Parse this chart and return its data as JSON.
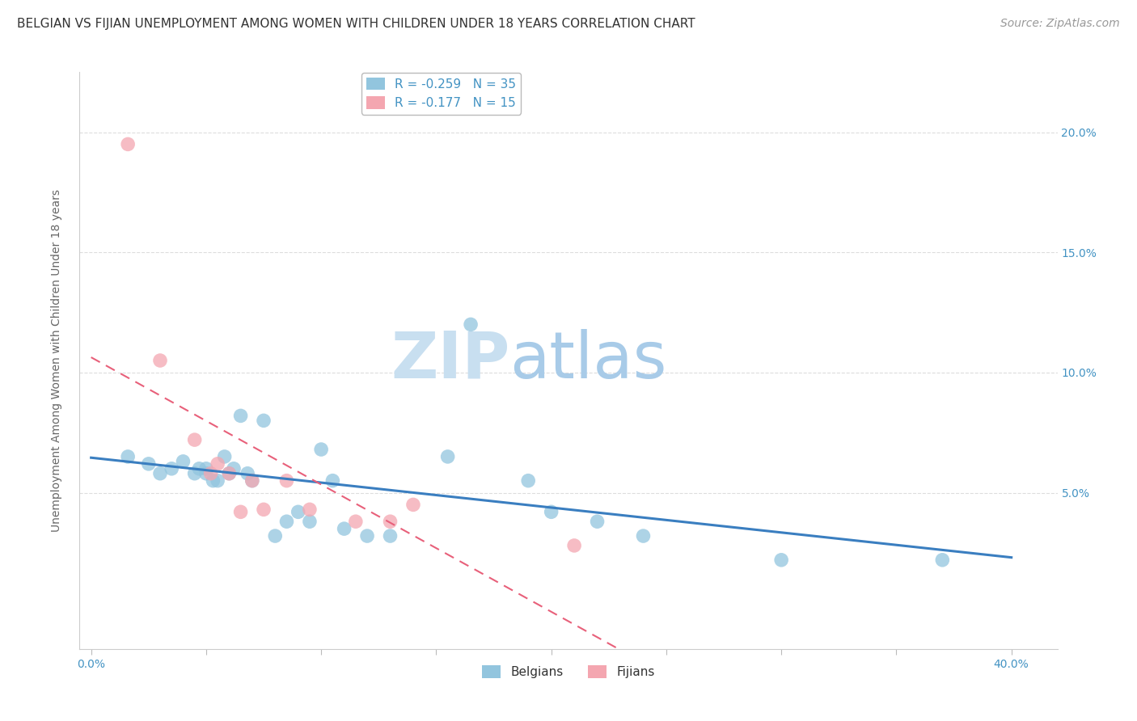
{
  "title": "BELGIAN VS FIJIAN UNEMPLOYMENT AMONG WOMEN WITH CHILDREN UNDER 18 YEARS CORRELATION CHART",
  "source": "Source: ZipAtlas.com",
  "ylabel": "Unemployment Among Women with Children Under 18 years",
  "xlim": [
    -0.005,
    0.42
  ],
  "ylim": [
    -0.015,
    0.225
  ],
  "xticks": [
    0.0,
    0.05,
    0.1,
    0.15,
    0.2,
    0.25,
    0.3,
    0.35,
    0.4
  ],
  "yticks": [
    0.0,
    0.05,
    0.1,
    0.15,
    0.2
  ],
  "watermark_zip": "ZIP",
  "watermark_atlas": "atlas",
  "belgian_color": "#92C5DE",
  "fijian_color": "#F4A6B0",
  "belgian_line_color": "#3A7EC0",
  "fijian_line_color": "#E8607A",
  "legend_r_belgian": "R = -0.259",
  "legend_n_belgian": "N = 35",
  "legend_r_fijian": "R = -0.177",
  "legend_n_fijian": "N = 15",
  "legend_label_belgian": "Belgians",
  "legend_label_fijian": "Fijians",
  "belgian_x": [
    0.016,
    0.025,
    0.03,
    0.035,
    0.04,
    0.045,
    0.047,
    0.05,
    0.05,
    0.053,
    0.055,
    0.058,
    0.06,
    0.062,
    0.065,
    0.068,
    0.07,
    0.075,
    0.08,
    0.085,
    0.09,
    0.095,
    0.1,
    0.105,
    0.11,
    0.12,
    0.13,
    0.155,
    0.165,
    0.19,
    0.2,
    0.22,
    0.24,
    0.3,
    0.37
  ],
  "belgian_y": [
    0.065,
    0.062,
    0.058,
    0.06,
    0.063,
    0.058,
    0.06,
    0.06,
    0.058,
    0.055,
    0.055,
    0.065,
    0.058,
    0.06,
    0.082,
    0.058,
    0.055,
    0.08,
    0.032,
    0.038,
    0.042,
    0.038,
    0.068,
    0.055,
    0.035,
    0.032,
    0.032,
    0.065,
    0.12,
    0.055,
    0.042,
    0.038,
    0.032,
    0.022,
    0.022
  ],
  "fijian_x": [
    0.016,
    0.03,
    0.045,
    0.052,
    0.055,
    0.06,
    0.065,
    0.07,
    0.075,
    0.085,
    0.095,
    0.115,
    0.13,
    0.14,
    0.21
  ],
  "fijian_y": [
    0.195,
    0.105,
    0.072,
    0.058,
    0.062,
    0.058,
    0.042,
    0.055,
    0.043,
    0.055,
    0.043,
    0.038,
    0.038,
    0.045,
    0.028
  ],
  "title_fontsize": 11,
  "source_fontsize": 10,
  "axis_label_fontsize": 10,
  "tick_fontsize": 10,
  "legend_fontsize": 11,
  "watermark_fontsize_zip": 58,
  "watermark_fontsize_atlas": 58,
  "watermark_color_zip": "#C8DFF0",
  "watermark_color_atlas": "#A8CBE8",
  "background_color": "#FFFFFF",
  "grid_color": "#DDDDDD",
  "tick_color": "#4393C3",
  "ylabel_color": "#666666"
}
